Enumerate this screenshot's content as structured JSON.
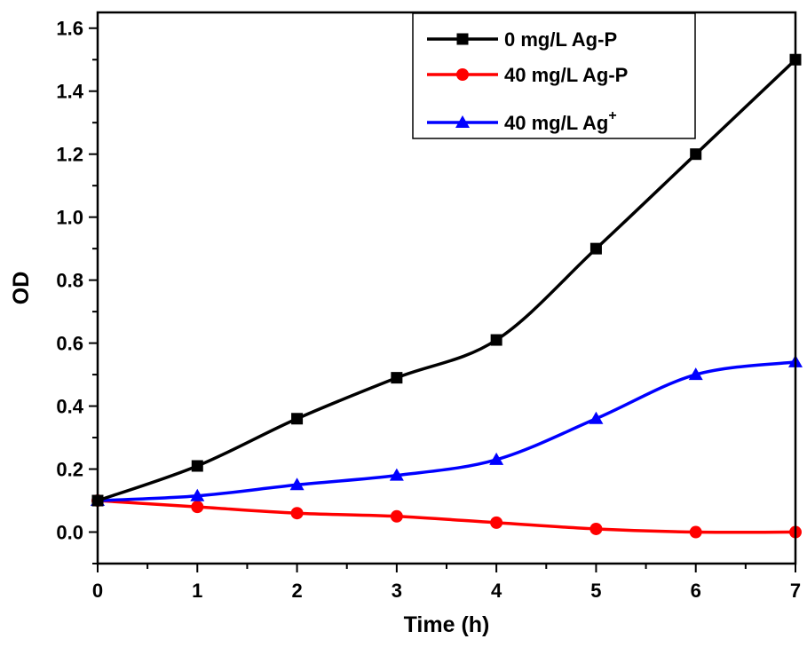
{
  "chart_data": {
    "type": "line",
    "title": "",
    "xlabel": "Time (h)",
    "ylabel": "OD",
    "xlim": [
      0,
      7
    ],
    "ylim": [
      -0.1,
      1.65
    ],
    "x_ticks": [
      0,
      1,
      2,
      3,
      4,
      5,
      6,
      7
    ],
    "x_tick_labels": [
      "0",
      "1",
      "2",
      "3",
      "4",
      "5",
      "6",
      "7"
    ],
    "y_ticks": [
      0.0,
      0.2,
      0.4,
      0.6,
      0.8,
      1.0,
      1.2,
      1.4,
      1.6
    ],
    "y_tick_labels": [
      "0.0",
      "0.2",
      "0.4",
      "0.6",
      "0.8",
      "1.0",
      "1.2",
      "1.4",
      "1.6"
    ],
    "grid": false,
    "legend_position": "top-right",
    "x": [
      0,
      1,
      2,
      3,
      4,
      5,
      6,
      7
    ],
    "series": [
      {
        "name": "0 mg/L Ag-P",
        "name_sup": "",
        "color": "#000000",
        "marker": "square",
        "values": [
          0.1,
          0.21,
          0.36,
          0.49,
          0.61,
          0.9,
          1.2,
          1.5
        ]
      },
      {
        "name": "40 mg/L Ag-P",
        "name_sup": "",
        "color": "#ff0000",
        "marker": "circle",
        "values": [
          0.1,
          0.08,
          0.06,
          0.05,
          0.03,
          0.01,
          0.0,
          0.0
        ]
      },
      {
        "name": "40 mg/L Ag",
        "name_sup": "+",
        "color": "#0000ff",
        "marker": "triangle",
        "values": [
          0.1,
          0.115,
          0.15,
          0.18,
          0.23,
          0.36,
          0.5,
          0.54
        ]
      }
    ]
  }
}
